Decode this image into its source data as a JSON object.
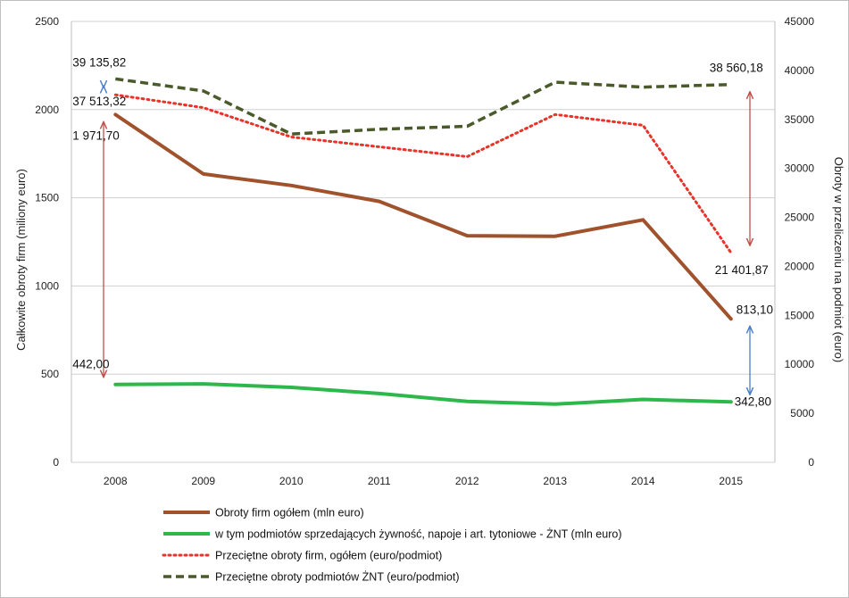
{
  "chart_data": {
    "type": "line",
    "title": "",
    "categories": [
      "2008",
      "2009",
      "2010",
      "2011",
      "2012",
      "2013",
      "2014",
      "2015"
    ],
    "y_left": {
      "label": "Całkowite obroty firm (miliony euro)",
      "range": [
        0,
        2500
      ],
      "ticks": [
        0,
        500,
        1000,
        1500,
        2000,
        2500
      ]
    },
    "y_right": {
      "label": "Obroty w przeliczeniu na podmiot (euro)",
      "range": [
        0,
        45000
      ],
      "ticks": [
        0,
        5000,
        10000,
        15000,
        20000,
        25000,
        30000,
        35000,
        40000,
        45000
      ]
    },
    "grid": true,
    "legend_position": "bottom",
    "series": [
      {
        "name": "Obroty firm ogółem (mln euro)",
        "axis": "left",
        "style": "solid",
        "color": "#A0522D",
        "values": [
          1971.7,
          1635,
          1570,
          1480,
          1285,
          1282,
          1375,
          813.1
        ]
      },
      {
        "name": "w tym podmiotów sprzedających żywność, napoje i art. tytoniowe - ŻNT (mln euro)",
        "axis": "left",
        "style": "solid",
        "color": "#2DB84B",
        "values": [
          442.0,
          445,
          425,
          390,
          345,
          330,
          357,
          342.8
        ]
      },
      {
        "name": "Przeciętne obroty firm, ogółem  (euro/podmiot)",
        "axis": "right",
        "style": "dotted",
        "color": "#E8332A",
        "values": [
          37513.32,
          36200,
          33200,
          32200,
          31200,
          35500,
          34400,
          21401.87
        ]
      },
      {
        "name": "Przeciętne obroty podmiotów ŻNT (euro/podmiot)",
        "axis": "right",
        "style": "dashed",
        "color": "#4A5A2A",
        "values": [
          39135.82,
          37900,
          33500,
          34000,
          34300,
          38800,
          38300,
          38560.18
        ]
      }
    ],
    "annotations": [
      {
        "text": "39 135,82",
        "series": 3,
        "index": 0
      },
      {
        "text": "37 513,32",
        "series": 2,
        "index": 0
      },
      {
        "text": "1 971,70",
        "series": 0,
        "index": 0
      },
      {
        "text": "442,00",
        "series": 1,
        "index": 0
      },
      {
        "text": "38 560,18",
        "series": 3,
        "index": 7
      },
      {
        "text": "21 401,87",
        "series": 2,
        "index": 7
      },
      {
        "text": "813,10",
        "series": 0,
        "index": 7
      },
      {
        "text": "342,80",
        "series": 1,
        "index": 7
      }
    ],
    "arrows": [
      {
        "from": {
          "series": 3,
          "index": 0
        },
        "to": {
          "series": 2,
          "index": 0
        },
        "color": "#4A7EC8"
      },
      {
        "from": {
          "series": 0,
          "index": 0
        },
        "to": {
          "series": 1,
          "index": 0
        },
        "color": "#C0504D"
      },
      {
        "from": {
          "series": 3,
          "index": 7
        },
        "to": {
          "series": 2,
          "index": 7
        },
        "color": "#C0504D"
      },
      {
        "from": {
          "series": 0,
          "index": 7
        },
        "to": {
          "series": 1,
          "index": 7
        },
        "color": "#4A7EC8"
      }
    ]
  }
}
